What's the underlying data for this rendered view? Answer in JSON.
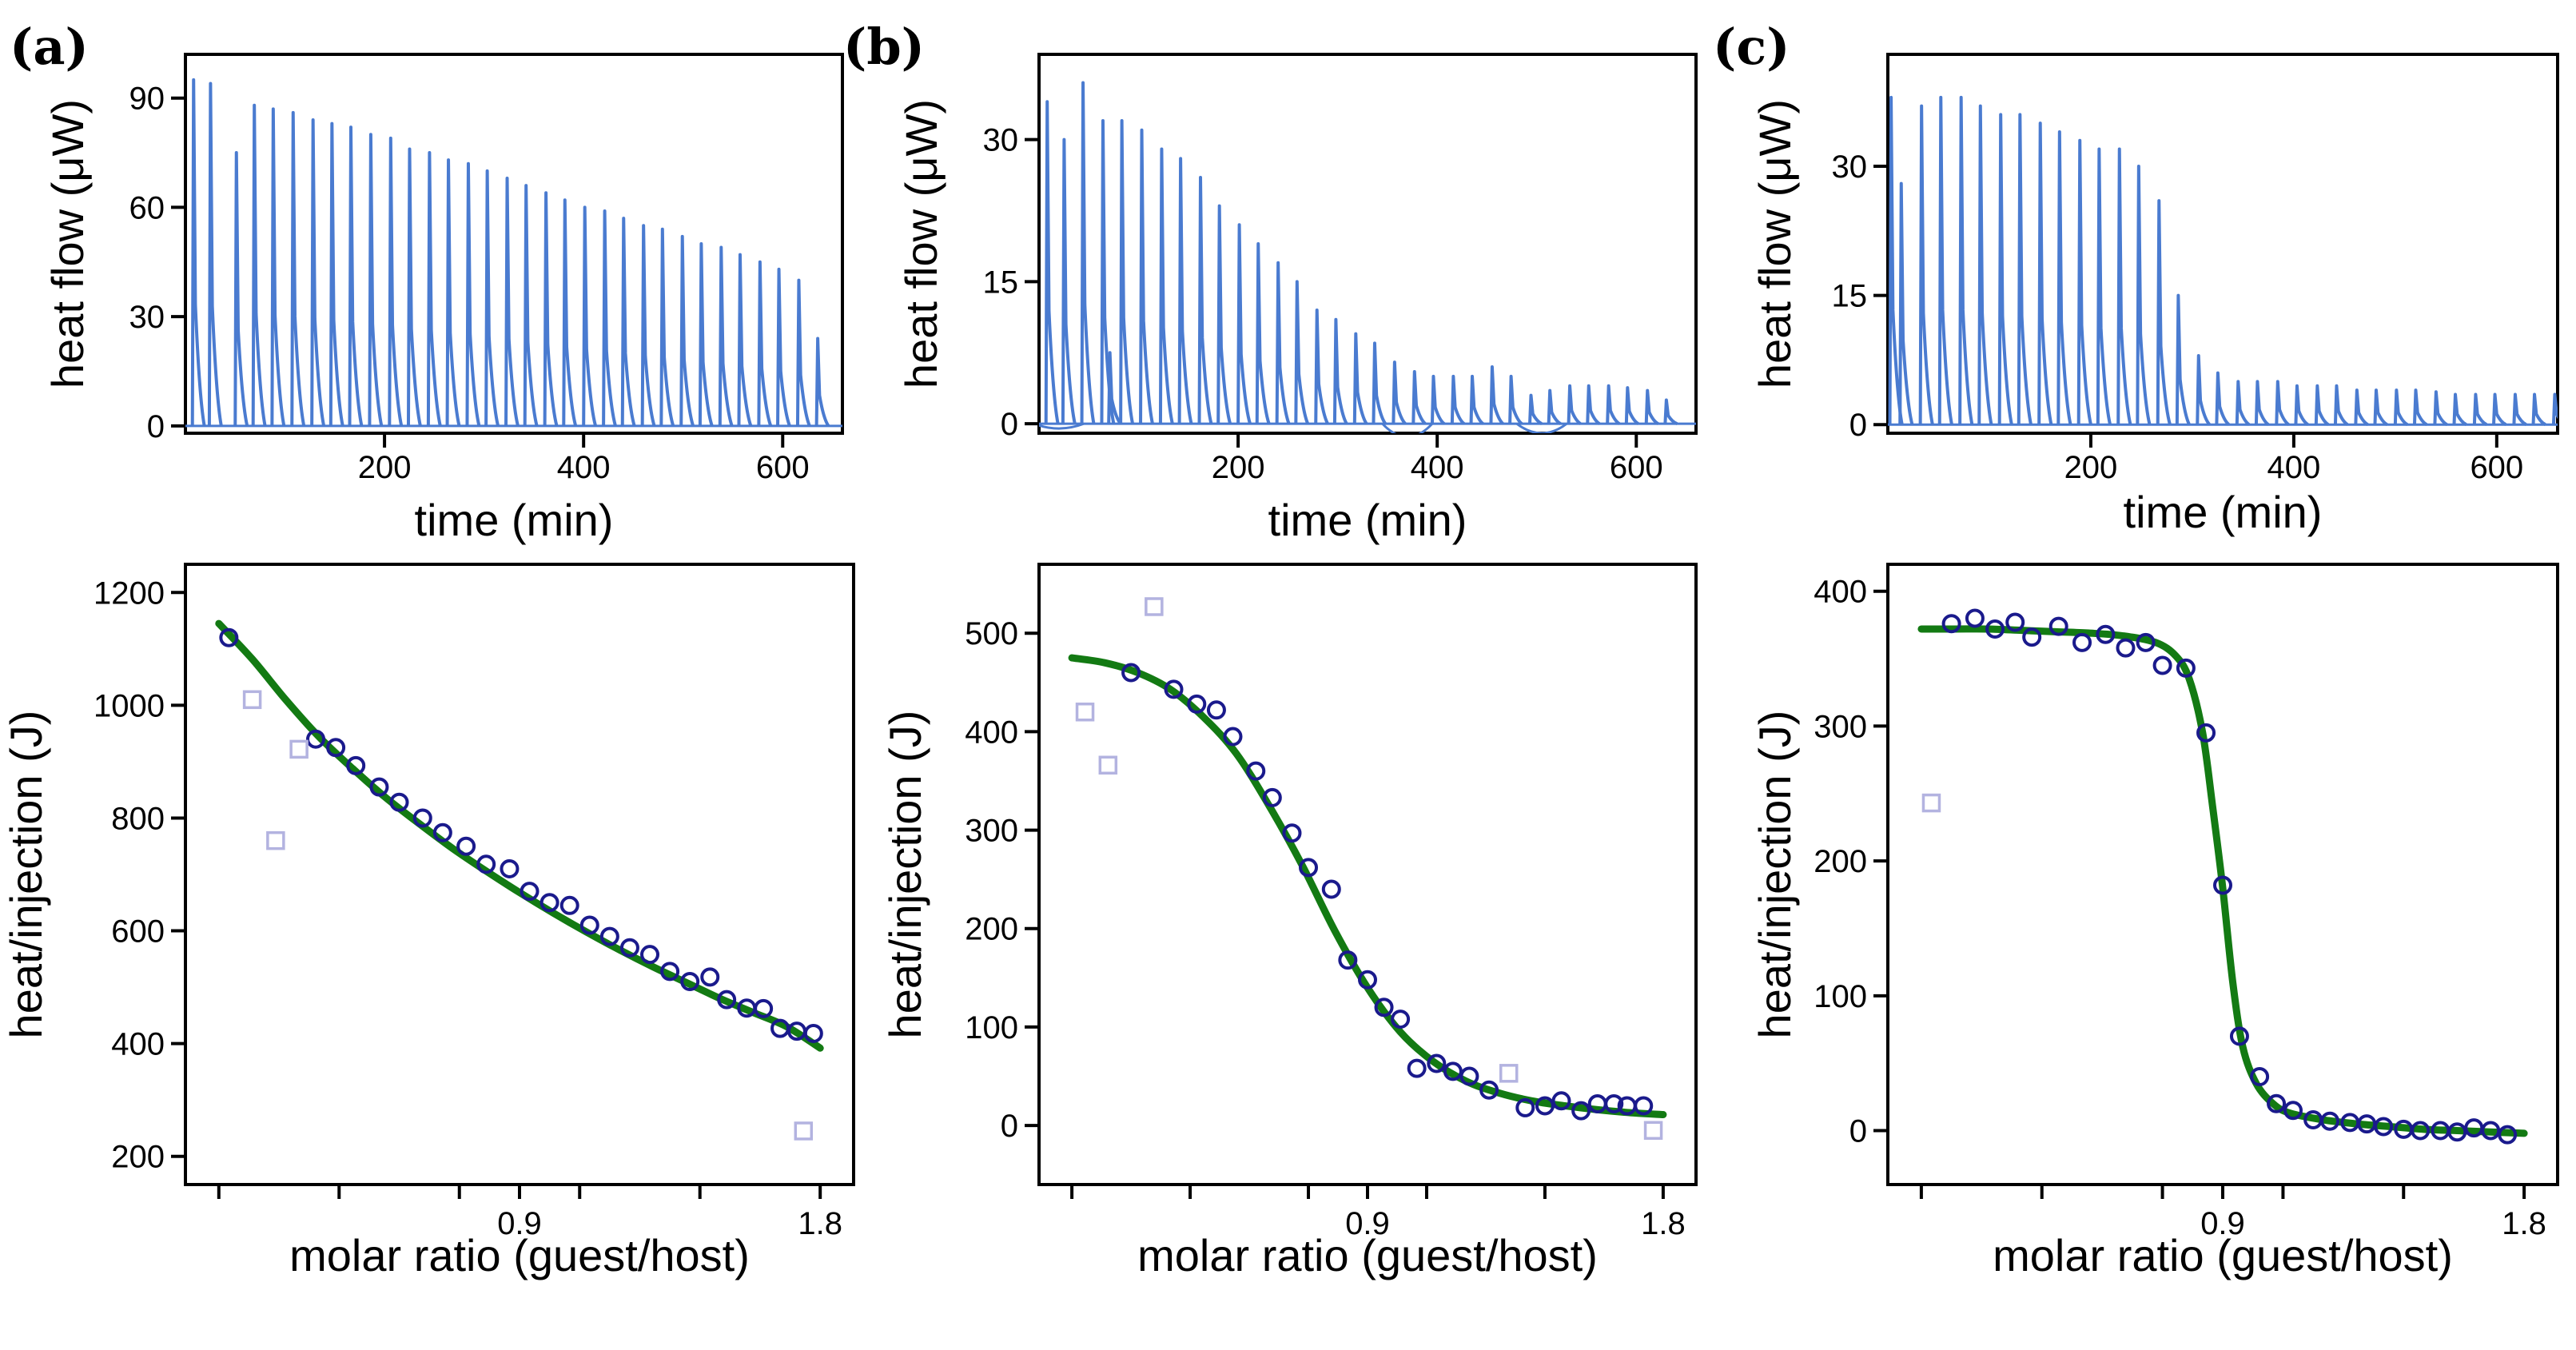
{
  "colors": {
    "raw": "#4a7bd0",
    "fit": "#137a13",
    "data": "#1a1a8c",
    "excluded": "#b3b3e0",
    "axis": "#000000"
  },
  "chart_data": [
    {
      "type": "line",
      "panel_label": "(a)",
      "xlabel": "time (min)",
      "ylabel": "heat flow (μW)",
      "xlim": [
        0,
        660
      ],
      "ylim": [
        -2,
        102
      ],
      "xticks": [
        200,
        400,
        600
      ],
      "yticks": [
        0,
        30,
        60,
        90
      ],
      "peaks": [
        {
          "t": 7,
          "h": 95
        },
        {
          "t": 24,
          "h": 94
        },
        {
          "t": 50,
          "h": 75
        },
        {
          "t": 68,
          "h": 88
        },
        {
          "t": 87,
          "h": 87
        },
        {
          "t": 107,
          "h": 86
        },
        {
          "t": 127,
          "h": 84
        },
        {
          "t": 146,
          "h": 83
        },
        {
          "t": 165,
          "h": 82
        },
        {
          "t": 185,
          "h": 80
        },
        {
          "t": 205,
          "h": 79
        },
        {
          "t": 224,
          "h": 76
        },
        {
          "t": 244,
          "h": 75
        },
        {
          "t": 263,
          "h": 73
        },
        {
          "t": 283,
          "h": 72
        },
        {
          "t": 302,
          "h": 70
        },
        {
          "t": 322,
          "h": 68
        },
        {
          "t": 341,
          "h": 66
        },
        {
          "t": 361,
          "h": 64
        },
        {
          "t": 380,
          "h": 62
        },
        {
          "t": 400,
          "h": 60
        },
        {
          "t": 420,
          "h": 59
        },
        {
          "t": 439,
          "h": 57
        },
        {
          "t": 459,
          "h": 55
        },
        {
          "t": 478,
          "h": 54
        },
        {
          "t": 498,
          "h": 52
        },
        {
          "t": 517,
          "h": 50
        },
        {
          "t": 537,
          "h": 49
        },
        {
          "t": 556,
          "h": 47
        },
        {
          "t": 576,
          "h": 45
        },
        {
          "t": 595,
          "h": 43
        },
        {
          "t": 615,
          "h": 40
        },
        {
          "t": 634,
          "h": 24
        }
      ]
    },
    {
      "type": "line",
      "panel_label": "(b)",
      "xlabel": "time (min)",
      "ylabel": "heat flow (μW)",
      "xlim": [
        0,
        660
      ],
      "ylim": [
        -1,
        39
      ],
      "xticks": [
        200,
        400,
        600
      ],
      "yticks": [
        0,
        15,
        30
      ],
      "peaks": [
        {
          "t": 7,
          "h": 34
        },
        {
          "t": 24,
          "h": 30
        },
        {
          "t": 43,
          "h": 36
        },
        {
          "t": 63,
          "h": 32
        },
        {
          "t": 70,
          "h": 7.5
        },
        {
          "t": 82,
          "h": 32
        },
        {
          "t": 102,
          "h": 31
        },
        {
          "t": 122,
          "h": 29
        },
        {
          "t": 141,
          "h": 28
        },
        {
          "t": 161,
          "h": 26
        },
        {
          "t": 180,
          "h": 23
        },
        {
          "t": 200,
          "h": 21
        },
        {
          "t": 219,
          "h": 19
        },
        {
          "t": 239,
          "h": 17
        },
        {
          "t": 258,
          "h": 15
        },
        {
          "t": 278,
          "h": 12
        },
        {
          "t": 297,
          "h": 11
        },
        {
          "t": 317,
          "h": 9.5
        },
        {
          "t": 336,
          "h": 8.5
        },
        {
          "t": 356,
          "h": 6.5
        },
        {
          "t": 376,
          "h": 5.5
        },
        {
          "t": 395,
          "h": 5
        },
        {
          "t": 415,
          "h": 5
        },
        {
          "t": 434,
          "h": 5
        },
        {
          "t": 454,
          "h": 6
        },
        {
          "t": 473,
          "h": 5
        },
        {
          "t": 493,
          "h": 3
        },
        {
          "t": 512,
          "h": 3.5
        },
        {
          "t": 532,
          "h": 4
        },
        {
          "t": 551,
          "h": 4
        },
        {
          "t": 571,
          "h": 4
        },
        {
          "t": 590,
          "h": 3.8
        },
        {
          "t": 610,
          "h": 3.5
        },
        {
          "t": 629,
          "h": 2.5
        }
      ],
      "dips": [
        {
          "t": 370,
          "d": -1.4
        },
        {
          "t": 505,
          "d": -1.0
        },
        {
          "t": 20,
          "d": -0.5
        }
      ]
    },
    {
      "type": "line",
      "panel_label": "(c)",
      "xlabel": "time (min)",
      "ylabel": "heat flow (μW)",
      "xlim": [
        0,
        660
      ],
      "ylim": [
        -1,
        43
      ],
      "xticks": [
        200,
        400,
        600
      ],
      "yticks": [
        0,
        15,
        30
      ],
      "peaks": [
        {
          "t": 2,
          "h": 38
        },
        {
          "t": 12,
          "h": 28
        },
        {
          "t": 32,
          "h": 37
        },
        {
          "t": 51,
          "h": 38
        },
        {
          "t": 71,
          "h": 38
        },
        {
          "t": 90,
          "h": 37
        },
        {
          "t": 110,
          "h": 36
        },
        {
          "t": 129,
          "h": 36
        },
        {
          "t": 149,
          "h": 35
        },
        {
          "t": 168,
          "h": 34
        },
        {
          "t": 188,
          "h": 33
        },
        {
          "t": 207,
          "h": 32
        },
        {
          "t": 227,
          "h": 32
        },
        {
          "t": 246,
          "h": 30
        },
        {
          "t": 266,
          "h": 26
        },
        {
          "t": 285,
          "h": 15
        },
        {
          "t": 305,
          "h": 8
        },
        {
          "t": 324,
          "h": 6
        },
        {
          "t": 344,
          "h": 5
        },
        {
          "t": 363,
          "h": 5
        },
        {
          "t": 383,
          "h": 5
        },
        {
          "t": 402,
          "h": 4.5
        },
        {
          "t": 422,
          "h": 4.5
        },
        {
          "t": 441,
          "h": 4.5
        },
        {
          "t": 461,
          "h": 4
        },
        {
          "t": 480,
          "h": 4
        },
        {
          "t": 500,
          "h": 4
        },
        {
          "t": 519,
          "h": 4
        },
        {
          "t": 539,
          "h": 3.8
        },
        {
          "t": 558,
          "h": 3.5
        },
        {
          "t": 578,
          "h": 3.5
        },
        {
          "t": 597,
          "h": 3.5
        },
        {
          "t": 617,
          "h": 3.5
        },
        {
          "t": 636,
          "h": 3.5
        },
        {
          "t": 656,
          "h": 3.5
        }
      ]
    },
    {
      "type": "scatter",
      "xlabel": "molar ratio (guest/host)",
      "ylabel": "heat/injection (J)",
      "xlim": [
        -0.1,
        1.9
      ],
      "ylim": [
        150,
        1250
      ],
      "xticks": [
        0.9,
        1.8
      ],
      "minor_xticks": [
        0,
        0.36,
        0.72,
        1.08,
        1.44
      ],
      "yticks": [
        200,
        400,
        600,
        800,
        1000,
        1200
      ],
      "data_points": [
        {
          "x": 0.03,
          "y": 1120
        },
        {
          "x": 0.29,
          "y": 940
        },
        {
          "x": 0.35,
          "y": 925
        },
        {
          "x": 0.41,
          "y": 893
        },
        {
          "x": 0.48,
          "y": 855
        },
        {
          "x": 0.54,
          "y": 828
        },
        {
          "x": 0.61,
          "y": 800
        },
        {
          "x": 0.67,
          "y": 774
        },
        {
          "x": 0.74,
          "y": 750
        },
        {
          "x": 0.8,
          "y": 718
        },
        {
          "x": 0.87,
          "y": 710
        },
        {
          "x": 0.93,
          "y": 670
        },
        {
          "x": 0.99,
          "y": 650
        },
        {
          "x": 1.05,
          "y": 645
        },
        {
          "x": 1.11,
          "y": 610
        },
        {
          "x": 1.17,
          "y": 590
        },
        {
          "x": 1.23,
          "y": 570
        },
        {
          "x": 1.29,
          "y": 558
        },
        {
          "x": 1.35,
          "y": 528
        },
        {
          "x": 1.41,
          "y": 510
        },
        {
          "x": 1.47,
          "y": 518
        },
        {
          "x": 1.52,
          "y": 478
        },
        {
          "x": 1.58,
          "y": 463
        },
        {
          "x": 1.63,
          "y": 462
        },
        {
          "x": 1.68,
          "y": 427
        },
        {
          "x": 1.73,
          "y": 422
        },
        {
          "x": 1.78,
          "y": 418
        }
      ],
      "excluded_points": [
        {
          "x": 0.1,
          "y": 1010
        },
        {
          "x": 0.17,
          "y": 760
        },
        {
          "x": 0.24,
          "y": 922
        },
        {
          "x": 1.75,
          "y": 245
        }
      ],
      "fit": [
        {
          "x": 0.0,
          "y": 1145
        },
        {
          "x": 0.1,
          "y": 1082
        },
        {
          "x": 0.2,
          "y": 1010
        },
        {
          "x": 0.3,
          "y": 944
        },
        {
          "x": 0.4,
          "y": 888
        },
        {
          "x": 0.5,
          "y": 836
        },
        {
          "x": 0.6,
          "y": 790
        },
        {
          "x": 0.7,
          "y": 746
        },
        {
          "x": 0.8,
          "y": 706
        },
        {
          "x": 0.9,
          "y": 668
        },
        {
          "x": 1.0,
          "y": 632
        },
        {
          "x": 1.1,
          "y": 598
        },
        {
          "x": 1.2,
          "y": 566
        },
        {
          "x": 1.3,
          "y": 536
        },
        {
          "x": 1.4,
          "y": 508
        },
        {
          "x": 1.5,
          "y": 480
        },
        {
          "x": 1.6,
          "y": 455
        },
        {
          "x": 1.7,
          "y": 430
        },
        {
          "x": 1.8,
          "y": 392
        }
      ]
    },
    {
      "type": "scatter",
      "xlabel": "molar ratio (guest/host)",
      "ylabel": "heat/injection (J)",
      "xlim": [
        -0.1,
        1.9
      ],
      "ylim": [
        -60,
        570
      ],
      "xticks": [
        0.9,
        1.8
      ],
      "minor_xticks": [
        0,
        0.36,
        0.72,
        1.08,
        1.44
      ],
      "yticks": [
        0,
        100,
        200,
        300,
        400,
        500
      ],
      "data_points": [
        {
          "x": 0.18,
          "y": 460
        },
        {
          "x": 0.31,
          "y": 443
        },
        {
          "x": 0.38,
          "y": 428
        },
        {
          "x": 0.44,
          "y": 422
        },
        {
          "x": 0.49,
          "y": 395
        },
        {
          "x": 0.56,
          "y": 360
        },
        {
          "x": 0.61,
          "y": 333
        },
        {
          "x": 0.67,
          "y": 297
        },
        {
          "x": 0.72,
          "y": 262
        },
        {
          "x": 0.79,
          "y": 240
        },
        {
          "x": 0.84,
          "y": 168
        },
        {
          "x": 0.9,
          "y": 148
        },
        {
          "x": 0.95,
          "y": 120
        },
        {
          "x": 1.0,
          "y": 108
        },
        {
          "x": 1.05,
          "y": 58
        },
        {
          "x": 1.11,
          "y": 63
        },
        {
          "x": 1.16,
          "y": 55
        },
        {
          "x": 1.21,
          "y": 50
        },
        {
          "x": 1.27,
          "y": 36
        },
        {
          "x": 1.38,
          "y": 18
        },
        {
          "x": 1.44,
          "y": 20
        },
        {
          "x": 1.49,
          "y": 25
        },
        {
          "x": 1.55,
          "y": 15
        },
        {
          "x": 1.6,
          "y": 22
        },
        {
          "x": 1.65,
          "y": 22
        },
        {
          "x": 1.69,
          "y": 20
        },
        {
          "x": 1.74,
          "y": 20
        }
      ],
      "excluded_points": [
        {
          "x": 0.04,
          "y": 420
        },
        {
          "x": 0.11,
          "y": 366
        },
        {
          "x": 0.25,
          "y": 527
        },
        {
          "x": 1.33,
          "y": 53
        },
        {
          "x": 1.77,
          "y": -5
        }
      ],
      "fit": [
        {
          "x": 0.0,
          "y": 475
        },
        {
          "x": 0.1,
          "y": 470
        },
        {
          "x": 0.2,
          "y": 460
        },
        {
          "x": 0.3,
          "y": 443
        },
        {
          "x": 0.4,
          "y": 415
        },
        {
          "x": 0.5,
          "y": 378
        },
        {
          "x": 0.6,
          "y": 325
        },
        {
          "x": 0.7,
          "y": 265
        },
        {
          "x": 0.8,
          "y": 198
        },
        {
          "x": 0.9,
          "y": 140
        },
        {
          "x": 1.0,
          "y": 95
        },
        {
          "x": 1.1,
          "y": 65
        },
        {
          "x": 1.2,
          "y": 45
        },
        {
          "x": 1.3,
          "y": 33
        },
        {
          "x": 1.4,
          "y": 25
        },
        {
          "x": 1.5,
          "y": 20
        },
        {
          "x": 1.6,
          "y": 16
        },
        {
          "x": 1.7,
          "y": 13
        },
        {
          "x": 1.8,
          "y": 11
        }
      ]
    },
    {
      "type": "scatter",
      "xlabel": "molar ratio (guest/host)",
      "ylabel": "heat/injection (J)",
      "xlim": [
        -0.1,
        1.9
      ],
      "ylim": [
        -40,
        420
      ],
      "xticks": [
        0.9,
        1.8
      ],
      "minor_xticks": [
        0,
        0.36,
        0.72,
        1.08,
        1.44
      ],
      "yticks": [
        0,
        100,
        200,
        300,
        400
      ],
      "data_points": [
        {
          "x": 0.09,
          "y": 376
        },
        {
          "x": 0.16,
          "y": 380
        },
        {
          "x": 0.22,
          "y": 372
        },
        {
          "x": 0.28,
          "y": 377
        },
        {
          "x": 0.33,
          "y": 366
        },
        {
          "x": 0.41,
          "y": 374
        },
        {
          "x": 0.48,
          "y": 362
        },
        {
          "x": 0.55,
          "y": 368
        },
        {
          "x": 0.61,
          "y": 358
        },
        {
          "x": 0.67,
          "y": 362
        },
        {
          "x": 0.72,
          "y": 345
        },
        {
          "x": 0.79,
          "y": 343
        },
        {
          "x": 0.85,
          "y": 295
        },
        {
          "x": 0.9,
          "y": 182
        },
        {
          "x": 0.95,
          "y": 70
        },
        {
          "x": 1.01,
          "y": 40
        },
        {
          "x": 1.06,
          "y": 20
        },
        {
          "x": 1.11,
          "y": 15
        },
        {
          "x": 1.17,
          "y": 8
        },
        {
          "x": 1.22,
          "y": 7
        },
        {
          "x": 1.28,
          "y": 6
        },
        {
          "x": 1.33,
          "y": 5
        },
        {
          "x": 1.38,
          "y": 3
        },
        {
          "x": 1.44,
          "y": 1
        },
        {
          "x": 1.49,
          "y": 0
        },
        {
          "x": 1.55,
          "y": 0
        },
        {
          "x": 1.6,
          "y": -1
        },
        {
          "x": 1.65,
          "y": 2
        },
        {
          "x": 1.7,
          "y": 0
        },
        {
          "x": 1.75,
          "y": -3
        }
      ],
      "excluded_points": [
        {
          "x": 0.03,
          "y": 243
        }
      ],
      "fit": [
        {
          "x": 0.0,
          "y": 372
        },
        {
          "x": 0.1,
          "y": 372
        },
        {
          "x": 0.2,
          "y": 372
        },
        {
          "x": 0.3,
          "y": 371
        },
        {
          "x": 0.4,
          "y": 370
        },
        {
          "x": 0.5,
          "y": 369
        },
        {
          "x": 0.6,
          "y": 367
        },
        {
          "x": 0.7,
          "y": 362
        },
        {
          "x": 0.76,
          "y": 352
        },
        {
          "x": 0.8,
          "y": 335
        },
        {
          "x": 0.84,
          "y": 295
        },
        {
          "x": 0.87,
          "y": 240
        },
        {
          "x": 0.9,
          "y": 180
        },
        {
          "x": 0.93,
          "y": 110
        },
        {
          "x": 0.96,
          "y": 62
        },
        {
          "x": 1.0,
          "y": 35
        },
        {
          "x": 1.05,
          "y": 20
        },
        {
          "x": 1.1,
          "y": 13
        },
        {
          "x": 1.2,
          "y": 8
        },
        {
          "x": 1.3,
          "y": 5
        },
        {
          "x": 1.4,
          "y": 3
        },
        {
          "x": 1.5,
          "y": 1
        },
        {
          "x": 1.6,
          "y": 0
        },
        {
          "x": 1.7,
          "y": -1
        },
        {
          "x": 1.8,
          "y": -2
        }
      ]
    }
  ]
}
